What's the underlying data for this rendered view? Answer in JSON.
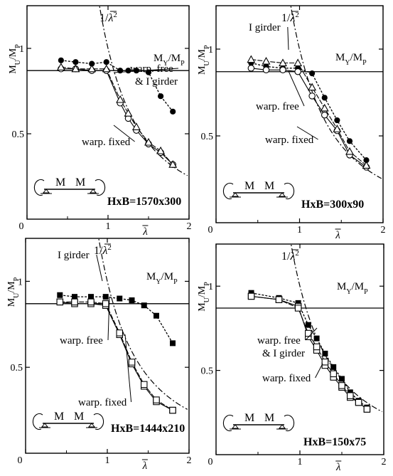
{
  "chart_data": [
    {
      "type": "line",
      "spec_label": "HxB=1570x300",
      "xlabel": "λ̄",
      "ylabel": "M_U/M_P",
      "xlim": [
        0,
        2
      ],
      "ylim": [
        0,
        1.25
      ],
      "xticks": [
        "0",
        "1",
        "2"
      ],
      "yticks": [
        "0.5",
        "1"
      ],
      "my_mp": 0.87,
      "load_diagram": {
        "left_label": "M",
        "right_label": "M"
      },
      "elastic_curve_label": "1/λ̄²",
      "horizontal_label": "M_Y/M_P",
      "series": [
        {
          "name": "I girder",
          "marker": "filled-circle",
          "dash": "short",
          "x": [
            0.42,
            0.6,
            0.8,
            0.98,
            1.15,
            1.25,
            1.35,
            1.5,
            1.65,
            1.8
          ],
          "y": [
            0.93,
            0.92,
            0.91,
            0.92,
            0.87,
            0.87,
            0.87,
            0.86,
            0.72,
            0.63
          ]
        },
        {
          "name": "warp. free",
          "marker": "open-circle",
          "dash": "solid",
          "x": [
            0.42,
            0.6,
            0.8,
            0.98,
            1.15,
            1.25,
            1.35,
            1.5,
            1.65,
            1.8
          ],
          "y": [
            0.88,
            0.88,
            0.87,
            0.87,
            0.68,
            0.59,
            0.52,
            0.44,
            0.39,
            0.32
          ]
        },
        {
          "name": "warp. fixed",
          "marker": "open-triangle",
          "dash": "solid",
          "x": [
            0.42,
            0.6,
            0.8,
            0.98,
            1.15,
            1.25,
            1.35,
            1.5,
            1.65,
            1.8
          ],
          "y": [
            0.89,
            0.88,
            0.88,
            0.88,
            0.7,
            0.62,
            0.54,
            0.45,
            0.4,
            0.32
          ]
        }
      ],
      "annotations": [
        {
          "text": "warp. free",
          "target": "warp. free"
        },
        {
          "text": "& I girder",
          "target": "warp. free"
        },
        {
          "text": "warp. fixed",
          "target": "warp. fixed"
        }
      ]
    },
    {
      "type": "line",
      "spec_label": "HxB=300x90",
      "xlabel": "λ̄",
      "ylabel": "M_U/M_P",
      "xlim": [
        0,
        2
      ],
      "ylim": [
        0,
        1.25
      ],
      "xticks": [
        "0",
        "1",
        "2"
      ],
      "yticks": [
        "0.5",
        "1"
      ],
      "my_mp": 0.87,
      "load_diagram": {
        "left_label": "M",
        "right_label": "M"
      },
      "elastic_curve_label": "1/λ̄²",
      "horizontal_label": "M_Y/M_P",
      "series": [
        {
          "name": "I girder",
          "marker": "filled-circle",
          "dash": "short",
          "x": [
            0.42,
            0.6,
            0.8,
            0.98,
            1.15,
            1.3,
            1.45,
            1.6,
            1.8
          ],
          "y": [
            0.92,
            0.9,
            0.89,
            0.89,
            0.86,
            0.72,
            0.59,
            0.47,
            0.36
          ]
        },
        {
          "name": "warp. free",
          "marker": "open-circle",
          "dash": "solid",
          "x": [
            0.42,
            0.6,
            0.8,
            0.98,
            1.15,
            1.3,
            1.45,
            1.6,
            1.8
          ],
          "y": [
            0.89,
            0.88,
            0.88,
            0.87,
            0.73,
            0.62,
            0.53,
            0.39,
            0.32
          ]
        },
        {
          "name": "warp. fixed",
          "marker": "open-triangle",
          "dash": "solid",
          "x": [
            0.42,
            0.6,
            0.8,
            0.98,
            1.15,
            1.3,
            1.45,
            1.6,
            1.8
          ],
          "y": [
            0.94,
            0.93,
            0.92,
            0.92,
            0.78,
            0.66,
            0.54,
            0.41,
            0.33
          ]
        }
      ],
      "annotations": [
        {
          "text": "I girder",
          "target": "I girder"
        },
        {
          "text": "warp. free",
          "target": "warp. free"
        },
        {
          "text": "warp. fixed",
          "target": "warp. fixed"
        }
      ]
    },
    {
      "type": "line",
      "spec_label": "HxB=1444x210",
      "xlabel": "λ̄",
      "ylabel": "M_U/M_P",
      "xlim": [
        0,
        2
      ],
      "ylim": [
        0,
        1.25
      ],
      "xticks": [
        "0",
        "1",
        "2"
      ],
      "yticks": [
        "0.5",
        "1"
      ],
      "my_mp": 0.87,
      "load_diagram": {
        "left_label": "M",
        "right_label": "M"
      },
      "elastic_curve_label": "1/λ̄²",
      "horizontal_label": "M_Y/M_P",
      "series": [
        {
          "name": "I girder",
          "marker": "filled-square",
          "dash": "short",
          "x": [
            0.42,
            0.6,
            0.8,
            0.98,
            1.15,
            1.3,
            1.45,
            1.6,
            1.8
          ],
          "y": [
            0.92,
            0.91,
            0.91,
            0.91,
            0.9,
            0.89,
            0.86,
            0.8,
            0.64
          ]
        },
        {
          "name": "warp. free",
          "marker": "open-square",
          "dash": "solid",
          "x": [
            0.42,
            0.6,
            0.8,
            0.98,
            1.15,
            1.3,
            1.45,
            1.6,
            1.8
          ],
          "y": [
            0.88,
            0.87,
            0.87,
            0.86,
            0.69,
            0.52,
            0.39,
            0.3,
            0.25
          ]
        },
        {
          "name": "warp. fixed",
          "marker": "open-square",
          "dash": "solid",
          "x": [
            0.42,
            0.6,
            0.8,
            0.98,
            1.15,
            1.3,
            1.45,
            1.6,
            1.8
          ],
          "y": [
            0.88,
            0.88,
            0.88,
            0.87,
            0.7,
            0.53,
            0.4,
            0.31,
            0.25
          ]
        }
      ],
      "annotations": [
        {
          "text": "I girder",
          "target": "I girder"
        },
        {
          "text": "warp. free",
          "target": "warp. free"
        },
        {
          "text": "warp. fixed",
          "target": "warp. fixed"
        }
      ]
    },
    {
      "type": "line",
      "spec_label": "HxB=150x75",
      "xlabel": "λ̄",
      "ylabel": "M_U/M_P",
      "xlim": [
        0,
        2
      ],
      "ylim": [
        0,
        1.25
      ],
      "xticks": [
        "0",
        "1",
        "2"
      ],
      "yticks": [
        "0.5",
        "1"
      ],
      "my_mp": 0.87,
      "load_diagram": {
        "left_label": "M",
        "right_label": "M"
      },
      "elastic_curve_label": "1/λ̄²",
      "horizontal_label": "M_Y/M_P",
      "series": [
        {
          "name": "I girder",
          "marker": "filled-square",
          "dash": "short",
          "x": [
            0.42,
            0.75,
            0.98,
            1.1,
            1.2,
            1.3,
            1.4,
            1.5,
            1.6,
            1.7,
            1.8
          ],
          "y": [
            0.96,
            0.93,
            0.9,
            0.77,
            0.69,
            0.6,
            0.52,
            0.45,
            0.37,
            0.32,
            0.28
          ]
        },
        {
          "name": "warp. free",
          "marker": "open-square",
          "dash": "solid",
          "x": [
            0.42,
            0.75,
            0.98,
            1.1,
            1.2,
            1.3,
            1.4,
            1.5,
            1.6,
            1.7,
            1.8
          ],
          "y": [
            0.94,
            0.92,
            0.88,
            0.7,
            0.62,
            0.53,
            0.46,
            0.4,
            0.34,
            0.31,
            0.27
          ]
        },
        {
          "name": "warp. fixed",
          "marker": "open-square",
          "dash": "solid",
          "x": [
            0.42,
            0.75,
            0.98,
            1.1,
            1.2,
            1.3,
            1.4,
            1.5,
            1.6,
            1.7,
            1.8
          ],
          "y": [
            0.94,
            0.92,
            0.87,
            0.72,
            0.64,
            0.55,
            0.48,
            0.41,
            0.35,
            0.31,
            0.27
          ]
        }
      ],
      "annotations": [
        {
          "text": "warp. free",
          "target": "warp. free"
        },
        {
          "text": "& I girder",
          "target": "warp. free"
        },
        {
          "text": "warp. fixed",
          "target": "warp. fixed"
        }
      ]
    }
  ]
}
